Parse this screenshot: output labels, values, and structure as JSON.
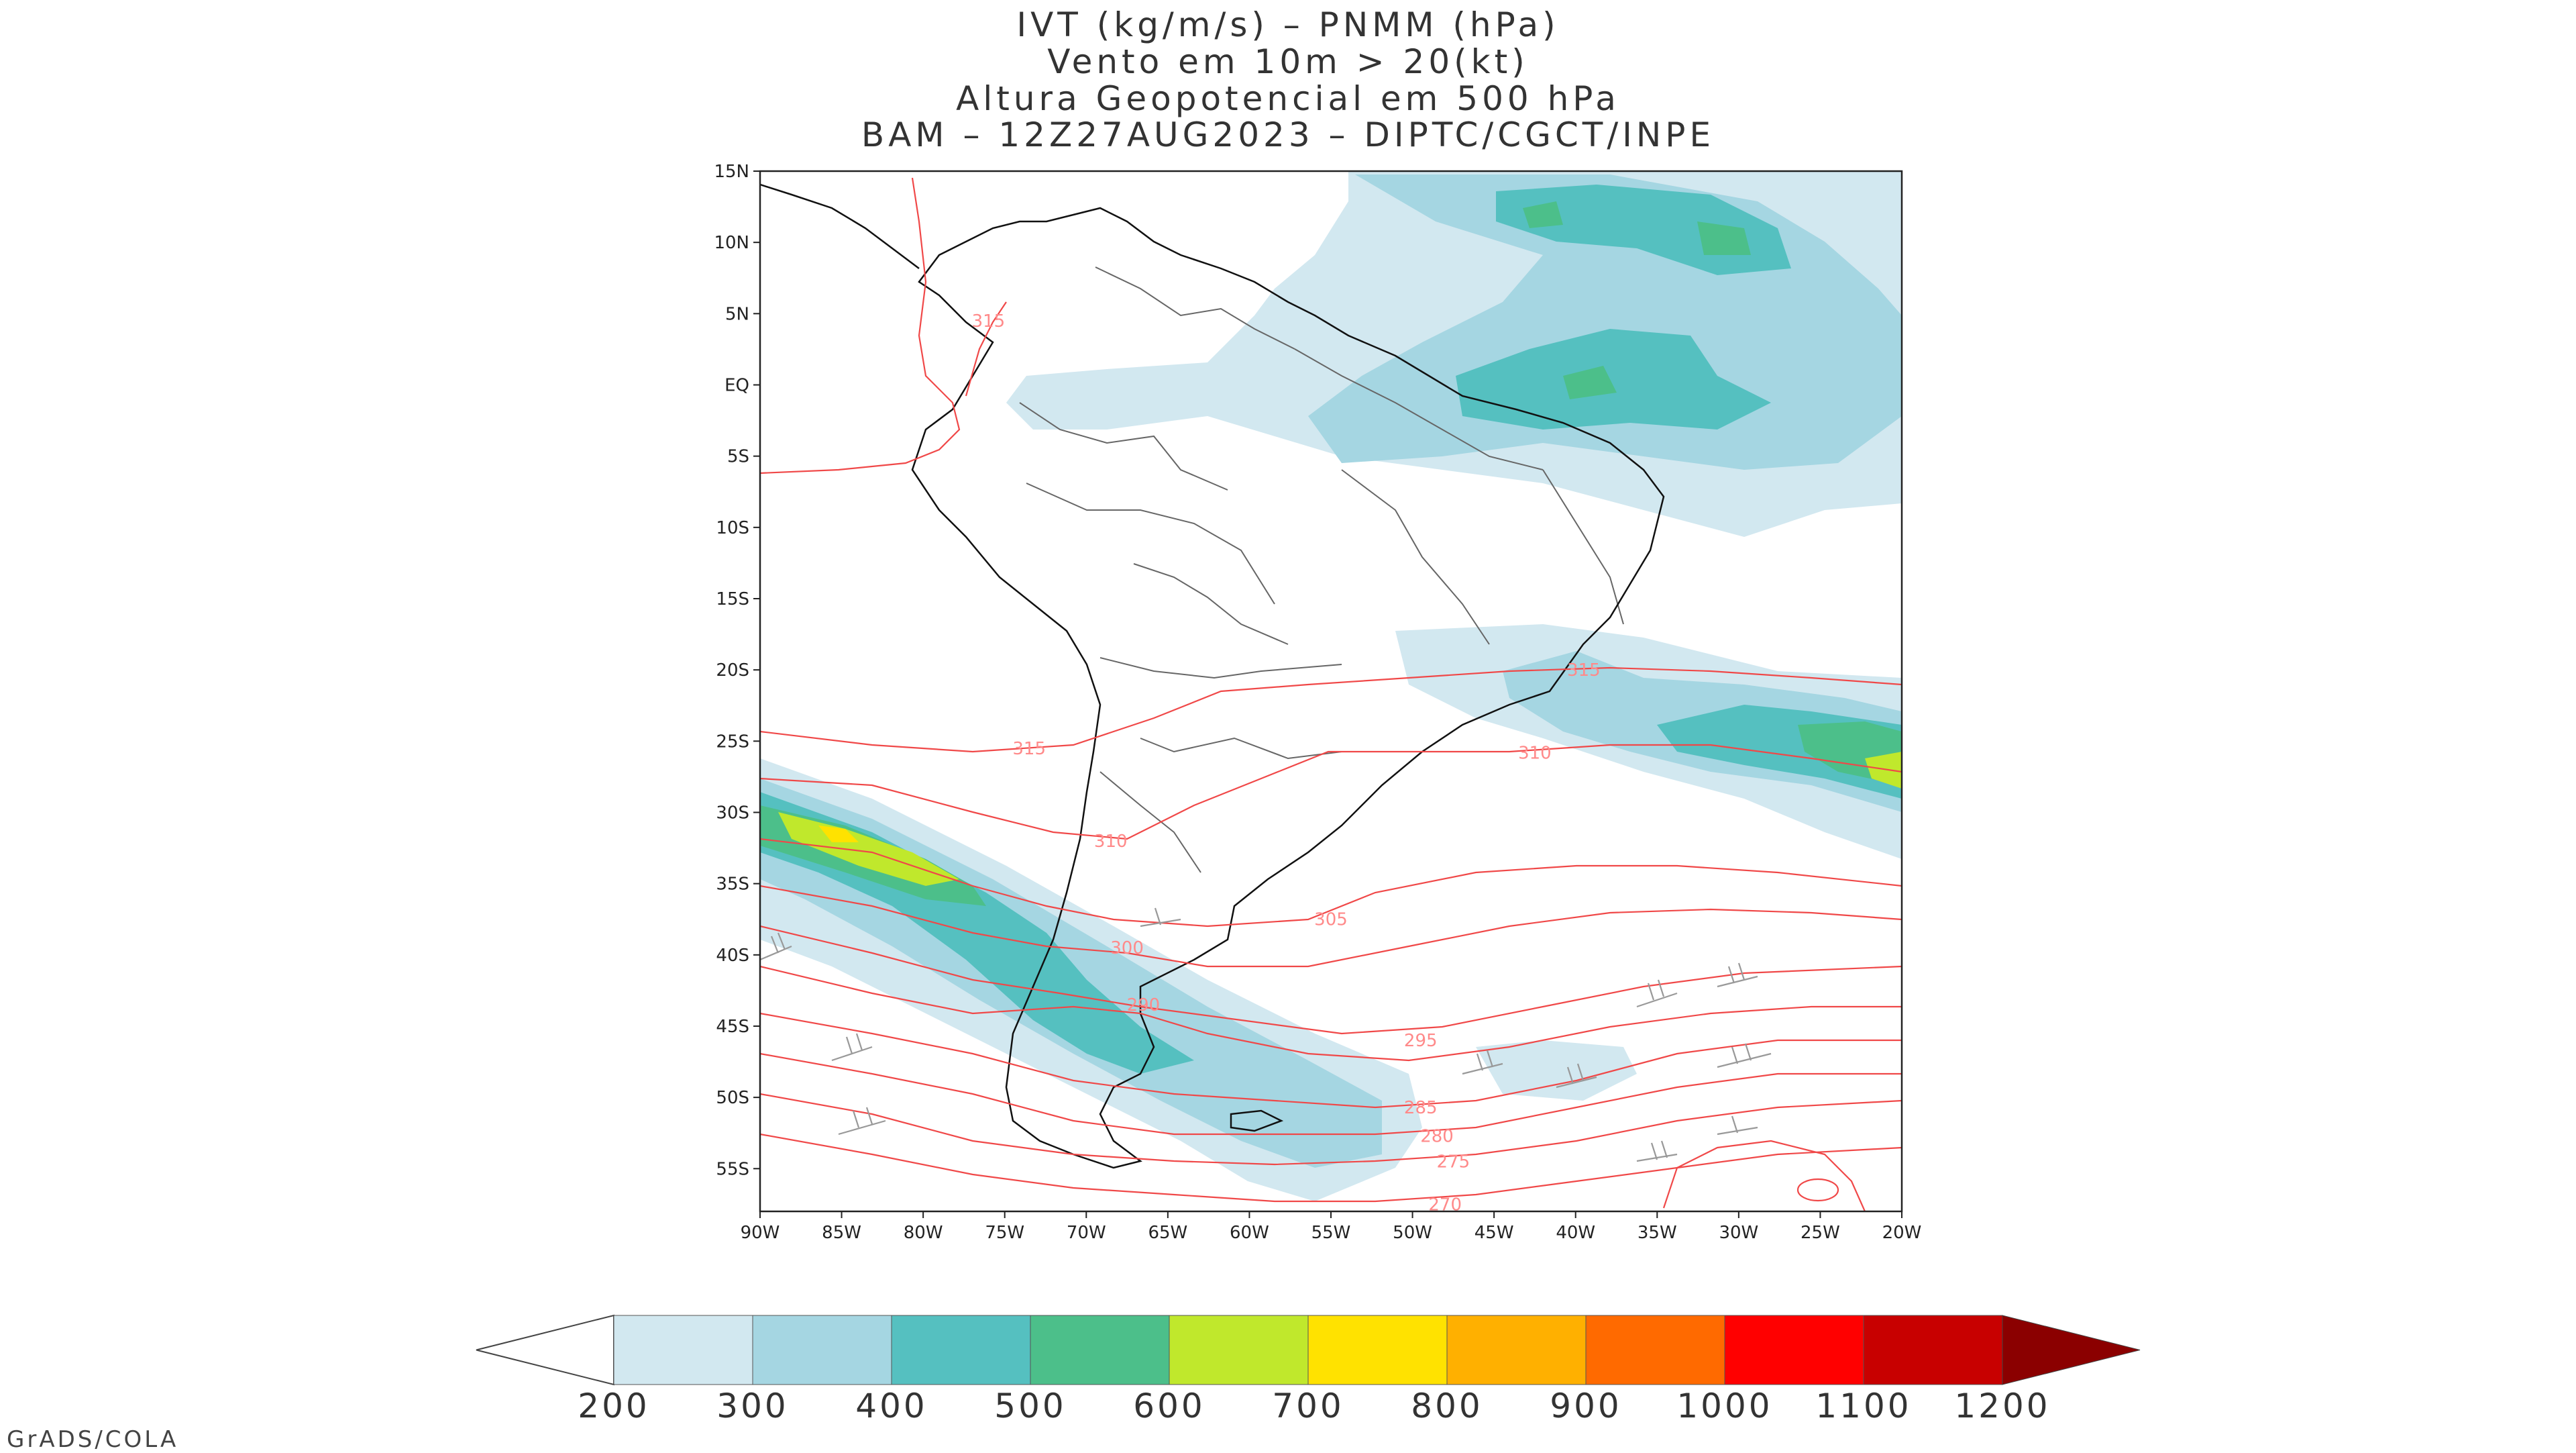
{
  "title": {
    "line1": "IVT (kg/m/s) – PNMM (hPa)",
    "line2": "Vento em 10m > 20(kt)",
    "line3": "Altura Geopotencial em 500 hPa",
    "line4": "BAM – 12Z27AUG2023 – DIPTC/CGCT/INPE"
  },
  "map": {
    "lon_range": [
      -90,
      -20
    ],
    "lat_range": [
      -58,
      15
    ],
    "lat_ticks": [
      "15N",
      "10N",
      "5N",
      "EQ",
      "5S",
      "10S",
      "15S",
      "20S",
      "25S",
      "30S",
      "35S",
      "40S",
      "45S",
      "50S",
      "55S"
    ],
    "lat_tick_values": [
      15,
      10,
      5,
      0,
      -5,
      -10,
      -15,
      -20,
      -25,
      -30,
      -35,
      -40,
      -45,
      -50,
      -55
    ],
    "lon_ticks": [
      "90W",
      "85W",
      "80W",
      "75W",
      "70W",
      "65W",
      "60W",
      "55W",
      "50W",
      "45W",
      "40W",
      "35W",
      "30W",
      "25W",
      "20W"
    ],
    "lon_tick_values": [
      -90,
      -85,
      -80,
      -75,
      -70,
      -65,
      -60,
      -55,
      -50,
      -45,
      -40,
      -35,
      -30,
      -25,
      -20
    ],
    "contour_labels": [
      {
        "text": "315",
        "lon": -76,
        "lat": 4.5
      },
      {
        "text": "315",
        "lon": -73.5,
        "lat": -25.5
      },
      {
        "text": "315",
        "lon": -39.5,
        "lat": -20
      },
      {
        "text": "310",
        "lon": -42.5,
        "lat": -25.8
      },
      {
        "text": "310",
        "lon": -68.5,
        "lat": -32
      },
      {
        "text": "305",
        "lon": -55,
        "lat": -37.5
      },
      {
        "text": "300",
        "lon": -67.5,
        "lat": -39.5
      },
      {
        "text": "290",
        "lon": -66.5,
        "lat": -43.5
      },
      {
        "text": "295",
        "lon": -49.5,
        "lat": -46
      },
      {
        "text": "285",
        "lon": -49.5,
        "lat": -50.7
      },
      {
        "text": "280",
        "lon": -48.5,
        "lat": -52.7
      },
      {
        "text": "275",
        "lon": -47.5,
        "lat": -54.5
      },
      {
        "text": "270",
        "lon": -48,
        "lat": -57.5
      }
    ],
    "colors": {
      "ivt_200": "#d2e8f0",
      "ivt_300": "#a5d6e2",
      "ivt_400": "#55c0c0",
      "ivt_500": "#4cbf8a",
      "ivt_600": "#c0e82c",
      "ivt_700": "#ffe200",
      "contour": "#f04848",
      "coast": "#111111",
      "border": "#666666",
      "barb": "#999999"
    }
  },
  "colorbar": {
    "labels": [
      "200",
      "300",
      "400",
      "500",
      "600",
      "700",
      "800",
      "900",
      "1000",
      "1100",
      "1200"
    ],
    "colors": [
      "#d2e8f0",
      "#a5d6e2",
      "#55c0c0",
      "#4cbf8a",
      "#c0e82c",
      "#ffe200",
      "#ffb000",
      "#ff6a00",
      "#ff0000",
      "#c80000"
    ],
    "under_color": "#ffffff",
    "over_color": "#8b0000"
  },
  "footer": "GrADS/COLA"
}
